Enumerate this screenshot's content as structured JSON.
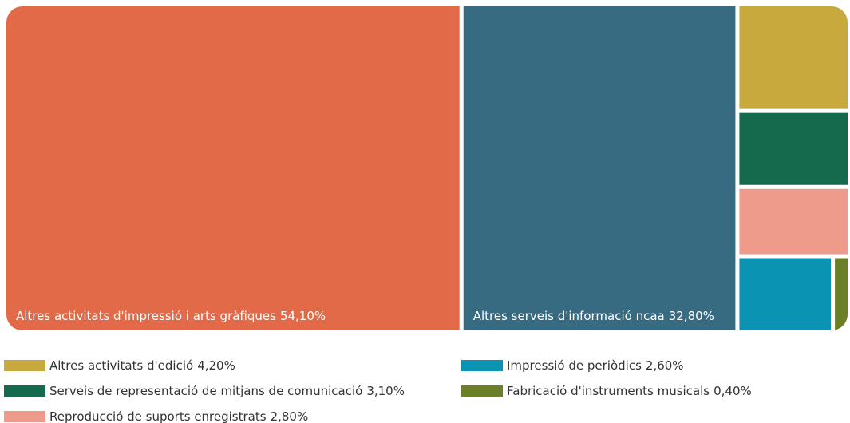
{
  "chart_data": {
    "type": "treemap",
    "categories": [
      "Altres activitats d'impressió i arts gràfiques",
      "Altres serveis d'informació ncaa",
      "Altres activitats d'edició",
      "Serveis de representació de mitjans de comunicació",
      "Reproducció de suports enregistrats",
      "Impressió de periòdics",
      "Fabricació d'instruments musicals"
    ],
    "values": [
      54.1,
      32.8,
      4.2,
      3.1,
      2.8,
      2.6,
      0.4
    ],
    "value_labels": [
      "54,10%",
      "32,80%",
      "4,20%",
      "3,10%",
      "2,80%",
      "2,60%",
      "0,40%"
    ],
    "colors": [
      "#e26a48",
      "#366b82",
      "#c8a93e",
      "#156a4e",
      "#ee9b8c",
      "#0b93b4",
      "#6a7f28"
    ]
  }
}
